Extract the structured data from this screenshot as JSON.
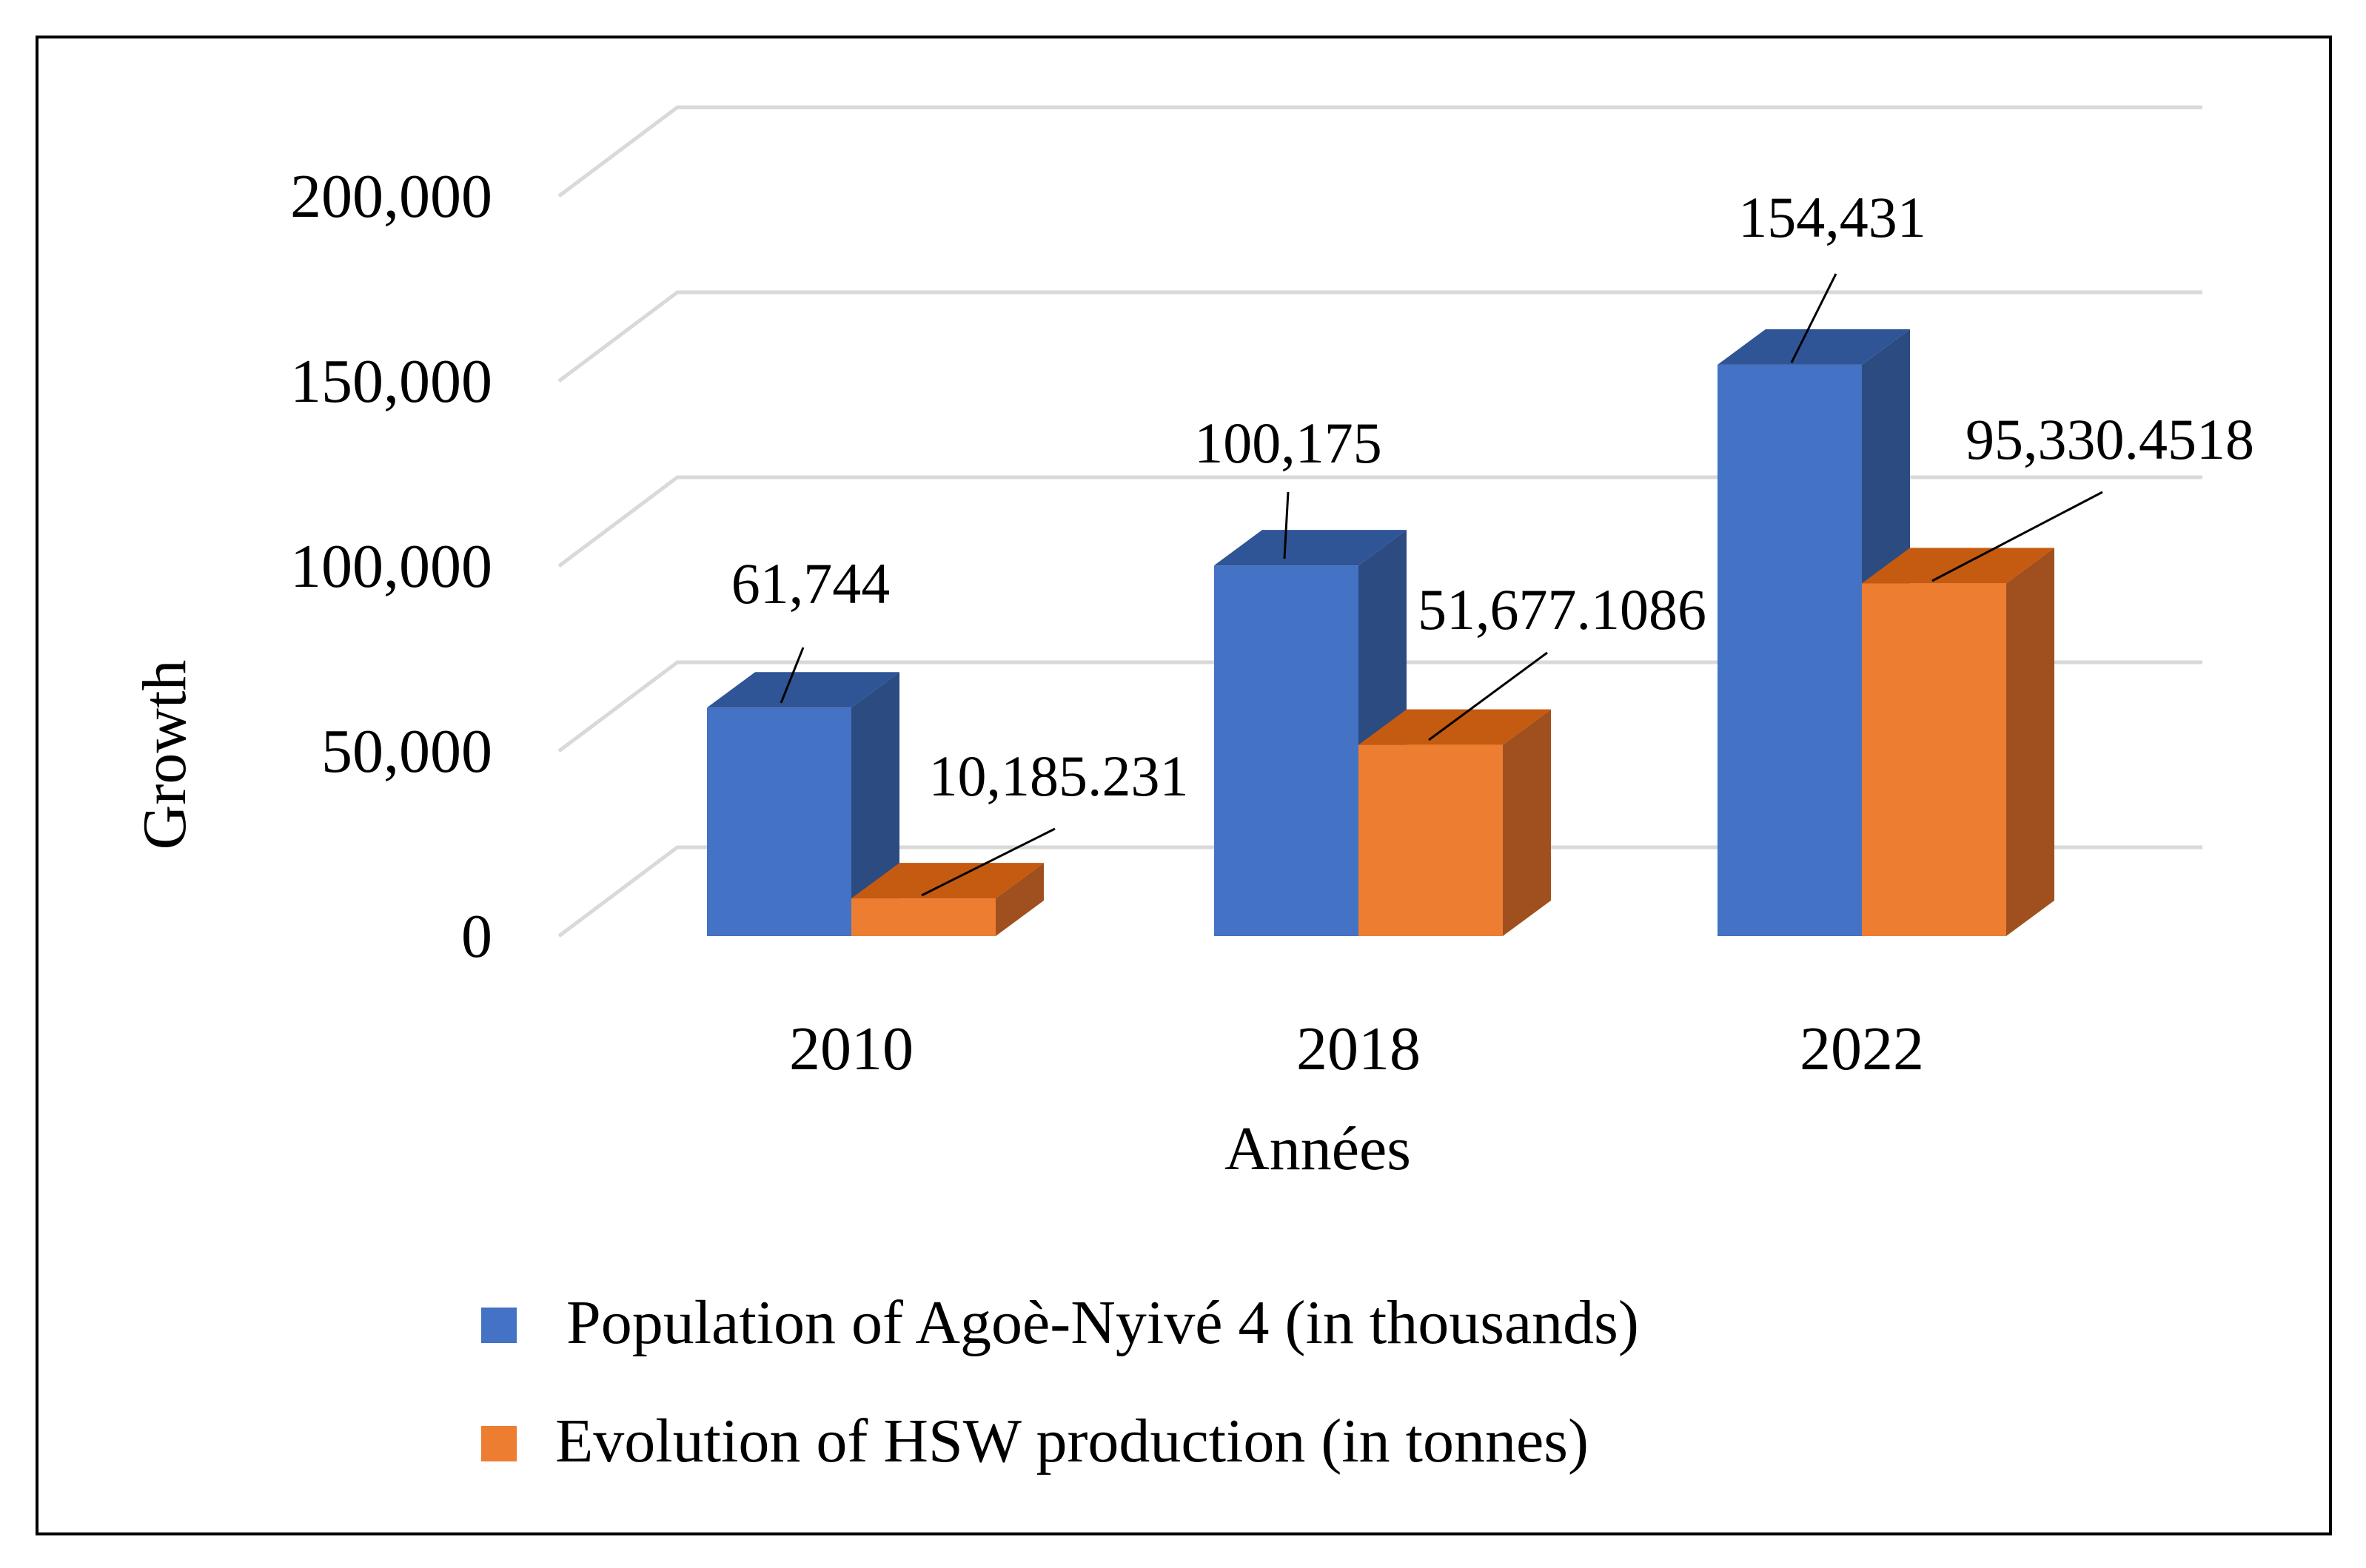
{
  "chart_data": {
    "type": "bar",
    "style": "3d-clustered-column",
    "title": "",
    "xlabel": "Années",
    "ylabel": "Growth",
    "categories": [
      "2010",
      "2018",
      "2022"
    ],
    "ylim": [
      0,
      200000
    ],
    "yticks": [
      0,
      50000,
      100000,
      150000,
      200000
    ],
    "ytick_labels": [
      "0",
      "50,000",
      "100,000",
      "150,000",
      "200,000"
    ],
    "grid": true,
    "legend_position": "bottom",
    "series": [
      {
        "name": "Population of Agoè-Nyivé 4 (in thousands)",
        "values": [
          61744,
          100175,
          154431
        ],
        "labels": [
          "61,744",
          "100,175",
          "154,431"
        ],
        "color": "#4472C4",
        "top_color": "#2F5597",
        "side_color": "#2C4B80"
      },
      {
        "name": "Evolution of HSW production (in tonnes)",
        "values": [
          10185.231,
          51677.1086,
          95330.4518
        ],
        "labels": [
          "10,185.231",
          "51,677.1086",
          "95,330.4518"
        ],
        "color": "#ED7D31",
        "top_color": "#C55A11",
        "side_color": "#A0501E"
      }
    ]
  }
}
